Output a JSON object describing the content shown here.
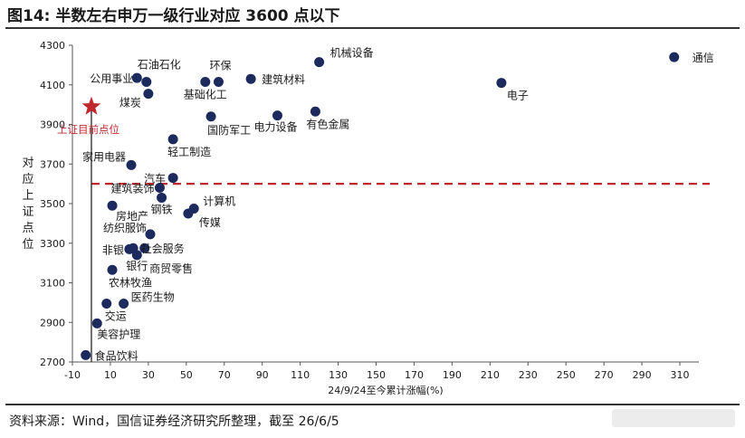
{
  "title": "图14: 半数左右申万一级行业对应 3600 点以下",
  "source": "资料来源：Wind，国信证券经济研究所整理，截至 26/6/5",
  "colors": {
    "point": "#1c2a5e",
    "reference": "#c0282e",
    "axis": "#555555",
    "text": "#1a1a1a"
  },
  "chart_data": {
    "type": "scatter",
    "title": "",
    "xlabel": "24/9/24至今累计涨幅(%)",
    "ylabel": "对应上证点位",
    "xlim": [
      -10,
      320
    ],
    "ylim": [
      2700,
      4300
    ],
    "xticks": [
      -10,
      10,
      30,
      50,
      70,
      90,
      110,
      130,
      150,
      170,
      190,
      210,
      230,
      250,
      270,
      290,
      310
    ],
    "yticks": [
      2700,
      2900,
      3100,
      3300,
      3500,
      3700,
      3900,
      4100,
      4300
    ],
    "reference_line": {
      "y": 3600,
      "style": "dashed"
    },
    "current_point": {
      "label": "上证目前点位",
      "x": 0,
      "y": 3990
    },
    "points": [
      {
        "label": "通信",
        "x": 307,
        "y": 4240
      },
      {
        "label": "电子",
        "x": 216,
        "y": 4110
      },
      {
        "label": "机械设备",
        "x": 120,
        "y": 4215
      },
      {
        "label": "建筑材料",
        "x": 84,
        "y": 4130
      },
      {
        "label": "环保",
        "x": 67,
        "y": 4115
      },
      {
        "label": "基础化工",
        "x": 60,
        "y": 4115
      },
      {
        "label": "石油石化",
        "x": 29,
        "y": 4115
      },
      {
        "label": "公用事业",
        "x": 24,
        "y": 4135
      },
      {
        "label": "煤炭",
        "x": 30,
        "y": 4055
      },
      {
        "label": "国防军工",
        "x": 63,
        "y": 3940
      },
      {
        "label": "电力设备",
        "x": 98,
        "y": 3945
      },
      {
        "label": "有色金属",
        "x": 118,
        "y": 3965
      },
      {
        "label": "轻工制造",
        "x": 43,
        "y": 3825
      },
      {
        "label": "家用电器",
        "x": 21,
        "y": 3695
      },
      {
        "label": "汽车",
        "x": 43,
        "y": 3630
      },
      {
        "label": "建筑装饰",
        "x": 36,
        "y": 3580
      },
      {
        "label": "钢铁",
        "x": 37,
        "y": 3530
      },
      {
        "label": "计算机",
        "x": 54,
        "y": 3475
      },
      {
        "label": "房地产",
        "x": 11,
        "y": 3490
      },
      {
        "label": "传媒",
        "x": 51,
        "y": 3450
      },
      {
        "label": "纺织服饰",
        "x": 31,
        "y": 3345
      },
      {
        "label": "社会服务",
        "x": 28,
        "y": 3275
      },
      {
        "label": "非银",
        "x": 20,
        "y": 3270
      },
      {
        "label": "银行",
        "x": 24,
        "y": 3240
      },
      {
        "label": "商贸零售",
        "x": 22,
        "y": 3275
      },
      {
        "label": "农林牧渔",
        "x": 11,
        "y": 3165
      },
      {
        "label": "医药生物",
        "x": 17,
        "y": 2995
      },
      {
        "label": "交运",
        "x": 8,
        "y": 2995
      },
      {
        "label": "美容护理",
        "x": 3,
        "y": 2895
      },
      {
        "label": "食品饮料",
        "x": -3,
        "y": 2735
      }
    ]
  }
}
